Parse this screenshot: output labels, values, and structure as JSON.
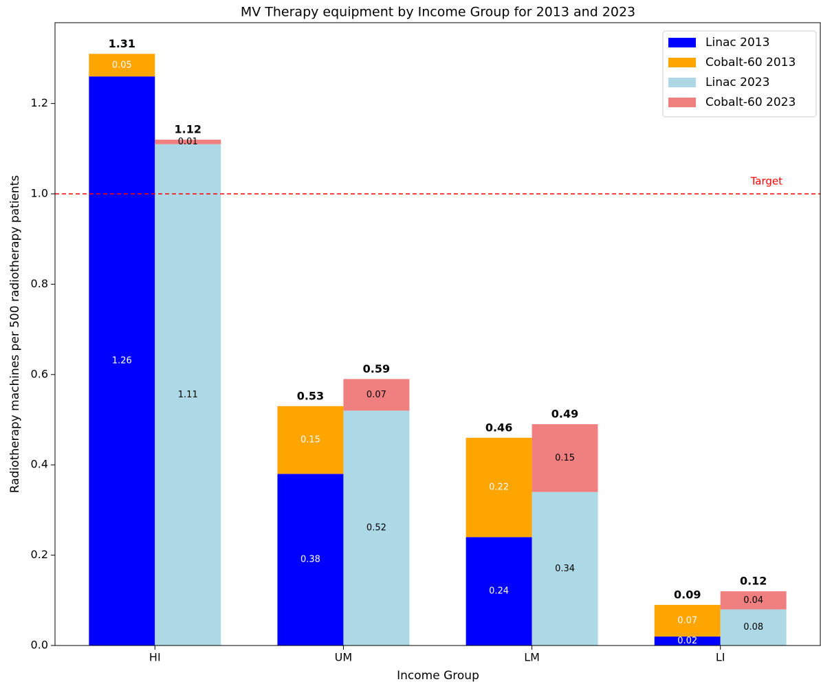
{
  "chart_data": {
    "type": "stacked_grouped_bar",
    "title": "MV Therapy equipment by Income Group for 2013 and 2023",
    "xlabel": "Income Group",
    "ylabel": "Radiotherapy machines per 500 radiotherapy patients",
    "categories": [
      "HI",
      "UM",
      "LM",
      "LI"
    ],
    "series": [
      {
        "name": "Linac 2013",
        "color": "#0000ff",
        "label_color": "#ffffff",
        "stack": 0,
        "values": [
          1.26,
          0.38,
          0.24,
          0.02
        ]
      },
      {
        "name": "Cobalt-60 2013",
        "color": "#ffa500",
        "label_color": "#ffffff",
        "stack": 0,
        "values": [
          0.05,
          0.15,
          0.22,
          0.07
        ]
      },
      {
        "name": "Linac 2023",
        "color": "#add8e6",
        "label_color": "#000000",
        "stack": 1,
        "values": [
          1.11,
          0.52,
          0.34,
          0.08
        ]
      },
      {
        "name": "Cobalt-60 2023",
        "color": "#f08080",
        "label_color": "#000000",
        "stack": 1,
        "values": [
          0.01,
          0.07,
          0.15,
          0.04
        ]
      }
    ],
    "stack_totals": [
      [
        1.31,
        0.53,
        0.46,
        0.09
      ],
      [
        1.12,
        0.59,
        0.49,
        0.12
      ]
    ],
    "reference_line": {
      "value": 1.0,
      "label": "Target",
      "color": "#ff0000"
    },
    "ylim": [
      0,
      1.379
    ],
    "yticks": [
      {
        "value": 0,
        "label": "0.0"
      },
      0.2,
      0.4,
      0.6,
      0.8,
      {
        "value": 1.0,
        "label": "1.0"
      },
      1.2
    ],
    "legend": "upper right",
    "grid": false
  }
}
